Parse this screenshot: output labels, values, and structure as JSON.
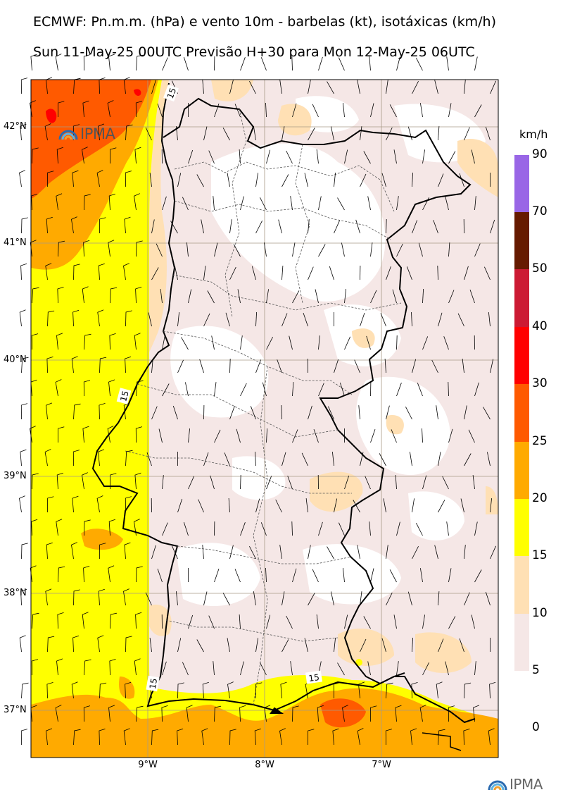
{
  "header": {
    "title": "ECMWF: Pn.m.m. (hPa) e vento 10m - barbelas (kt), isotáxicas (km/h)",
    "subtitle": "Sun 11-May-25 00UTC Previsão H+30 para Mon 12-May-25 06UTC"
  },
  "map": {
    "lat_labels": [
      "42°N",
      "41°N",
      "40°N",
      "39°N",
      "38°N",
      "37°N"
    ],
    "lon_labels": [
      "9°W",
      "8°W",
      "7°W"
    ],
    "contour_labels": [
      "15",
      "15",
      "15",
      "15"
    ],
    "extent": {
      "lon": [
        -10.0,
        -6.0
      ],
      "lat": [
        36.6,
        42.4
      ]
    }
  },
  "colorbar": {
    "unit": "km/h",
    "levels": [
      "90",
      "70",
      "50",
      "40",
      "30",
      "25",
      "20",
      "15",
      "10",
      "5",
      "0"
    ],
    "colors": [
      "#9966e6",
      "#661a00",
      "#cc1a33",
      "#ff0000",
      "#ff5a00",
      "#ffaa00",
      "#ffff00",
      "#ffe0b4",
      "#f5e7e6"
    ]
  },
  "branding": {
    "map_logo": "IPMA",
    "footer_logo": "IPMA",
    "logo_icon": "rainbow-arc-icon"
  }
}
